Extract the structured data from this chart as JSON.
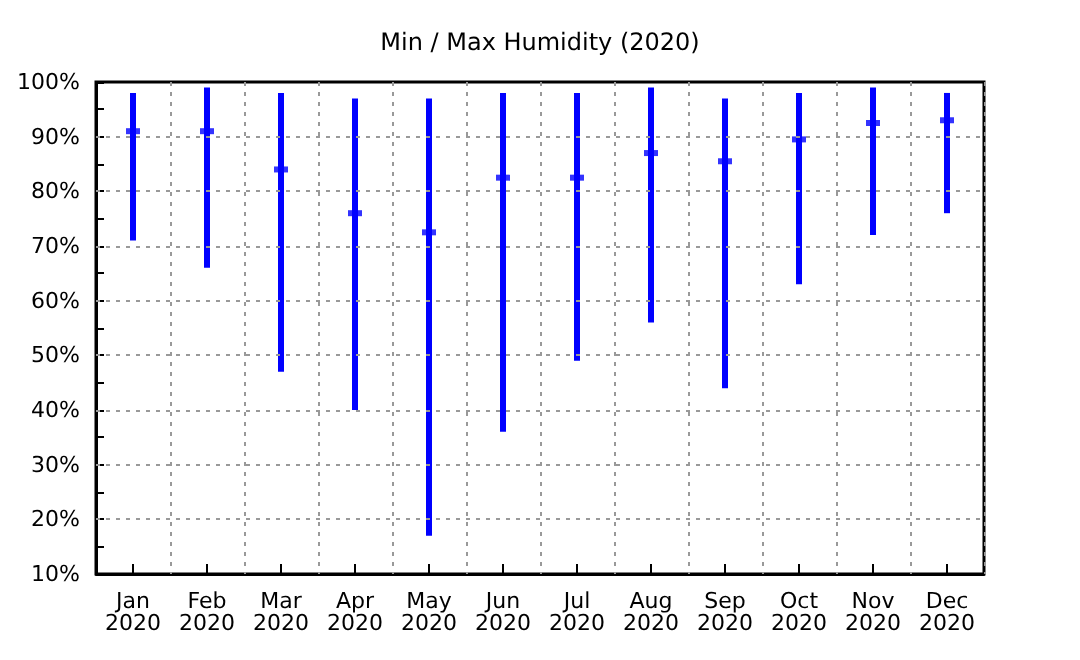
{
  "chart_data": {
    "type": "bar",
    "title": "Min / Max Humidity (2020)",
    "categories": [
      "Jan\n2020",
      "Feb\n2020",
      "Mar\n2020",
      "Apr\n2020",
      "May\n2020",
      "Jun\n2020",
      "Jul\n2020",
      "Aug\n2020",
      "Sep\n2020",
      "Oct\n2020",
      "Nov\n2020",
      "Dec\n2020"
    ],
    "series": [
      {
        "color": "#0000ff",
        "base": [
          71,
          66,
          47,
          40,
          17,
          36,
          49,
          56,
          44,
          63,
          72,
          76
        ],
        "values": [
          27,
          33,
          51,
          57,
          80,
          62,
          49,
          43,
          53,
          35,
          27,
          22
        ]
      },
      {
        "type": "scatter",
        "color": "#0000ff",
        "marker": "square",
        "x": [
          "Jan\n2020",
          "Feb\n2020",
          "Mar\n2020",
          "Apr\n2020",
          "May\n2020",
          "Jun\n2020",
          "Jul\n2020",
          "Aug\n2020",
          "Sep\n2020",
          "Oct\n2020",
          "Nov\n2020",
          "Dec\n2020"
        ],
        "values": [
          91,
          91,
          84,
          76,
          72.5,
          82.5,
          82.5,
          87,
          85.5,
          89.5,
          92.5,
          93
        ]
      }
    ],
    "ylim": [
      10,
      100
    ],
    "yticks": [
      {
        "value": 10,
        "label": "10%"
      },
      {
        "value": 15,
        "label": null
      },
      {
        "value": 20,
        "label": "20%"
      },
      {
        "value": 25,
        "label": null
      },
      {
        "value": 30,
        "label": "30%"
      },
      {
        "value": 35,
        "label": null
      },
      {
        "value": 40,
        "label": "40%"
      },
      {
        "value": 45,
        "label": null
      },
      {
        "value": 50,
        "label": "50%"
      },
      {
        "value": 55,
        "label": null
      },
      {
        "value": 60,
        "label": "60%"
      },
      {
        "value": 65,
        "label": null
      },
      {
        "value": 70,
        "label": "70%"
      },
      {
        "value": 75,
        "label": null
      },
      {
        "value": 80,
        "label": "80%"
      },
      {
        "value": 85,
        "label": null
      },
      {
        "value": 90,
        "label": "90%"
      },
      {
        "value": 95,
        "label": null
      },
      {
        "value": 100,
        "label": "100%"
      }
    ],
    "grid": true
  }
}
